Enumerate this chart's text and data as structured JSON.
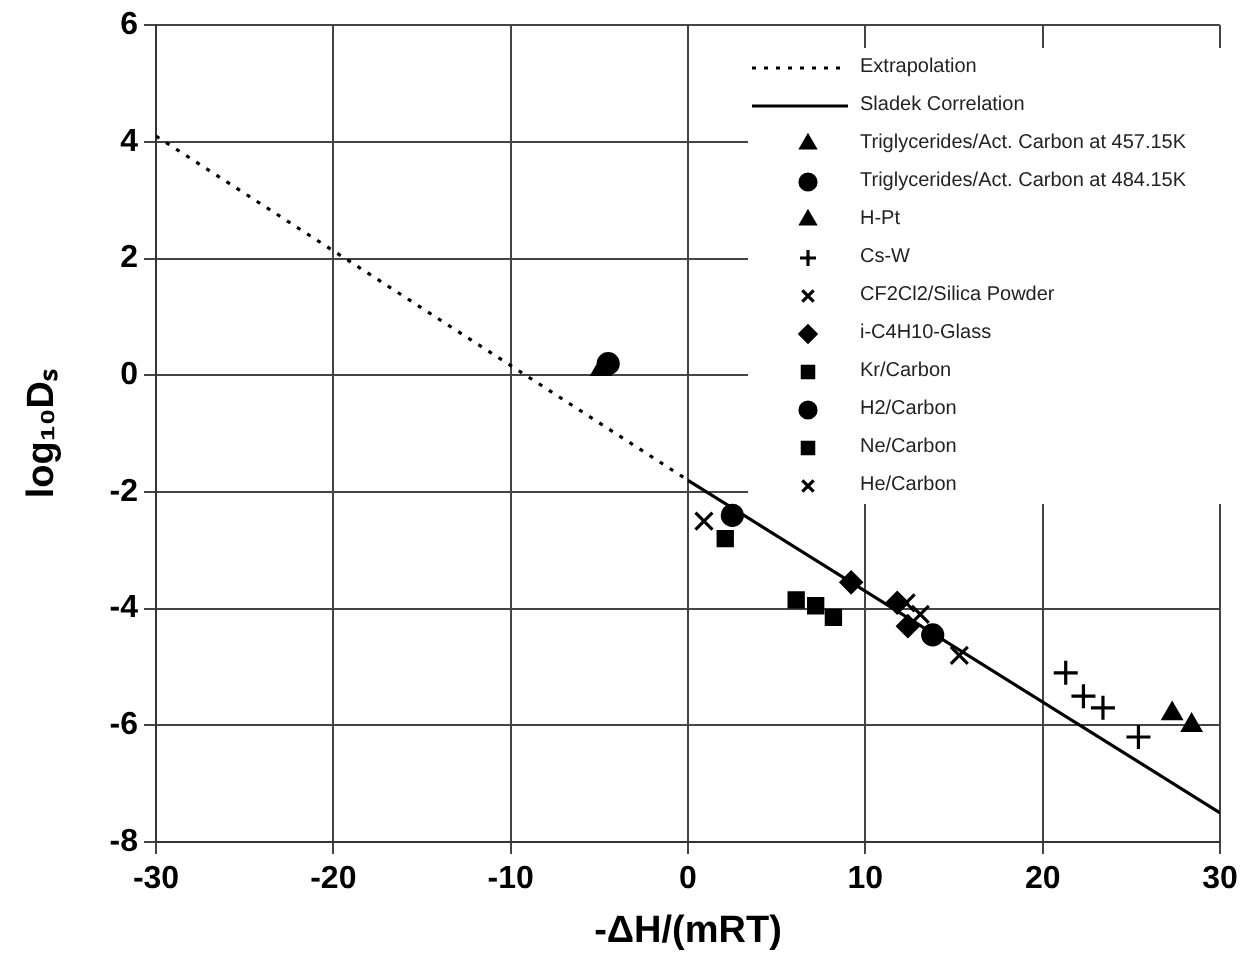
{
  "chart_data": {
    "type": "scatter",
    "xlabel": "-ΔH/(mRT)",
    "ylabel": "log₁₀Dₛ",
    "xlim": [
      -30,
      30
    ],
    "xticks": [
      -30,
      -20,
      -10,
      0,
      10,
      20,
      30
    ],
    "ylim": [
      -8,
      6
    ],
    "yticks": [
      -8,
      -6,
      -4,
      -2,
      0,
      2,
      4,
      6
    ],
    "grid": true,
    "legend": "top right",
    "series": [
      {
        "name": "Extrapolation",
        "type": "line",
        "line_style": "dotted",
        "marker": "none",
        "color": "#000000",
        "x": [
          -30,
          0
        ],
        "values": [
          4.1,
          -1.8
        ]
      },
      {
        "name": "Sladek Correlation",
        "type": "line",
        "line_style": "solid",
        "marker": "none",
        "color": "#000000",
        "x": [
          0,
          30
        ],
        "values": [
          -1.8,
          -7.5
        ]
      },
      {
        "name": "Triglycerides/Act. Carbon at 457.15K",
        "marker": "triangle",
        "color": "#000000",
        "x": [
          -4.9
        ],
        "values": [
          0.1
        ]
      },
      {
        "name": "Triglycerides/Act. Carbon at 484.15K",
        "marker": "circle",
        "color": "#000000",
        "x": [
          -4.5
        ],
        "values": [
          0.2
        ]
      },
      {
        "name": "H-Pt",
        "marker": "triangle",
        "color": "#000000",
        "x": [
          27.3,
          28.4
        ],
        "values": [
          -5.8,
          -6.0
        ]
      },
      {
        "name": "Cs-W",
        "marker": "plus",
        "color": "#000000",
        "x": [
          21.3,
          22.3,
          23.4,
          25.4
        ],
        "values": [
          -5.1,
          -5.5,
          -5.7,
          -6.2
        ]
      },
      {
        "name": "CF2Cl2/Silica Powder",
        "marker": "cross",
        "color": "#000000",
        "x": [
          12.3,
          13.1,
          15.3
        ],
        "values": [
          -3.9,
          -4.1,
          -4.8
        ]
      },
      {
        "name": "i-C4H10-Glass",
        "marker": "diamond",
        "color": "#000000",
        "x": [
          9.2,
          11.8,
          12.4
        ],
        "values": [
          -3.55,
          -3.9,
          -4.3
        ]
      },
      {
        "name": "Kr/Carbon",
        "marker": "square",
        "color": "#000000",
        "x": [
          6.1,
          7.2,
          8.2
        ],
        "values": [
          -3.85,
          -3.95,
          -4.15
        ]
      },
      {
        "name": "H2/Carbon",
        "marker": "circle",
        "color": "#000000",
        "x": [
          2.5,
          13.8
        ],
        "values": [
          -2.4,
          -4.45
        ]
      },
      {
        "name": "Ne/Carbon",
        "marker": "square",
        "color": "#000000",
        "x": [
          2.1
        ],
        "values": [
          -2.8
        ]
      },
      {
        "name": "He/Carbon",
        "marker": "cross",
        "color": "#000000",
        "x": [
          0.9
        ],
        "values": [
          -2.5
        ]
      }
    ]
  }
}
